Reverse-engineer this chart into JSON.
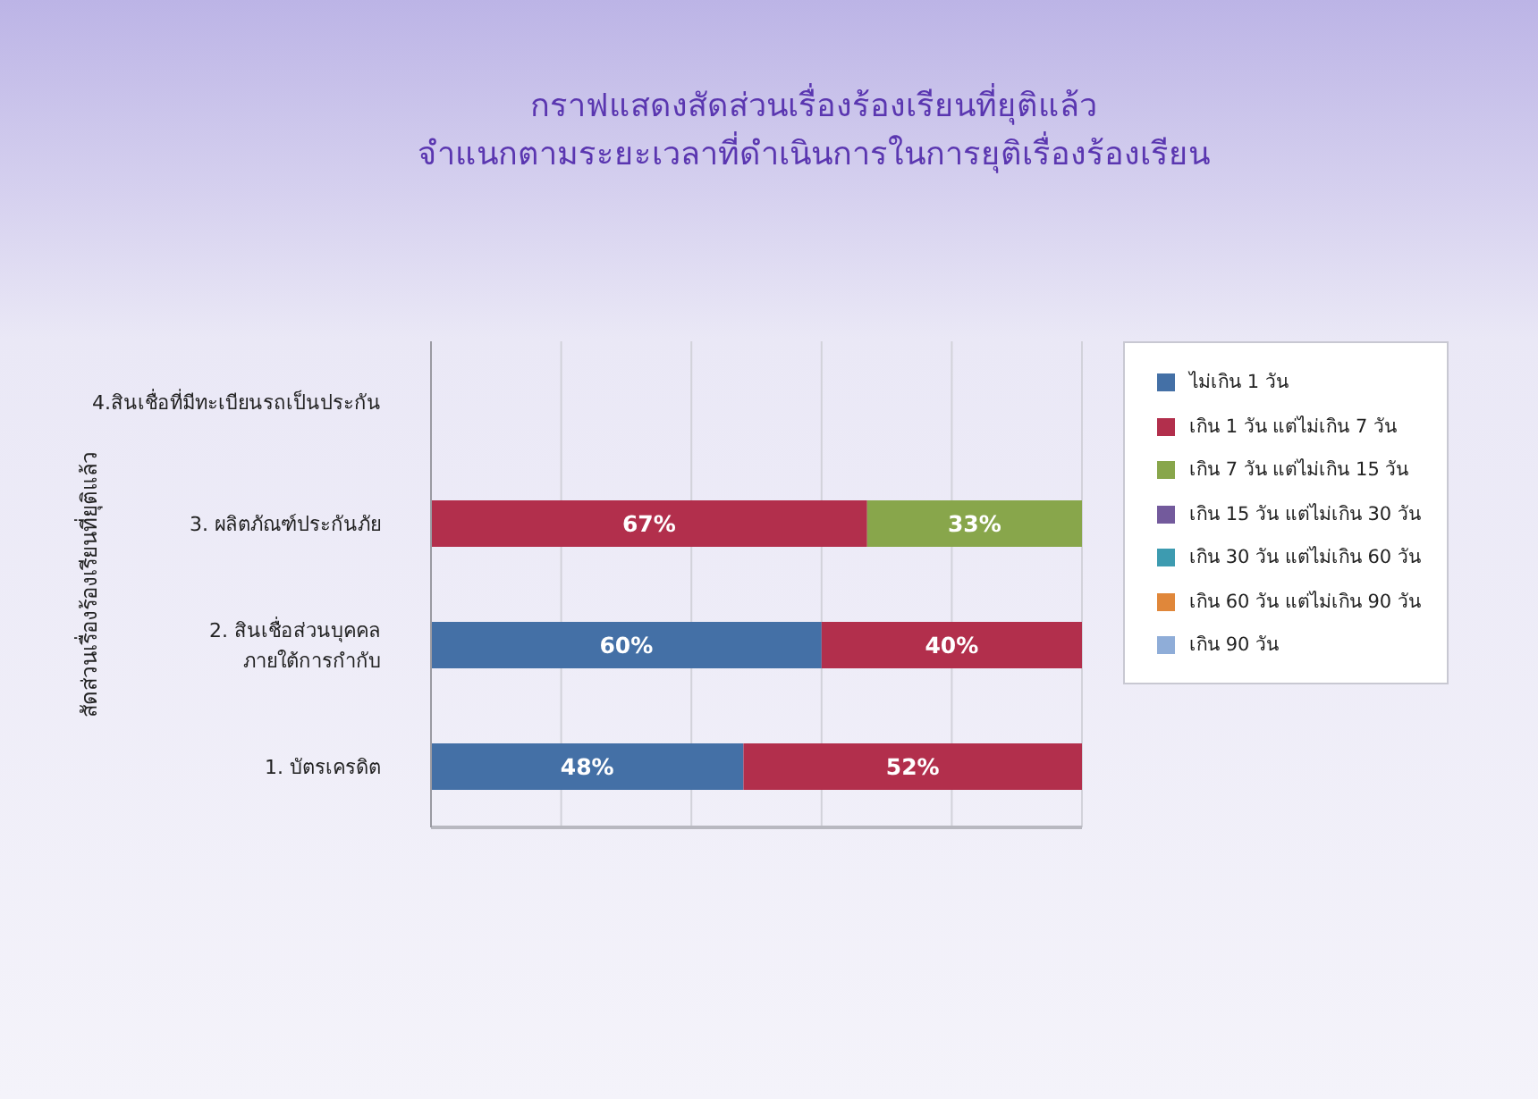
{
  "chart_data": {
    "type": "bar",
    "orientation": "horizontal",
    "stacked": true,
    "title": "กราฟแสดงสัดส่วนเรื่องร้องเรียนที่ยุติแล้ว",
    "subtitle": "จำแนกตามระยะเวลาที่ดำเนินการในการยุติเรื่องร้องเรียน",
    "ylabel": "สัดส่วนเรื่องร้องเรียนที่ยุติแล้ว",
    "categories": [
      "4.สินเชื่อที่มีทะเบียนรถเป็นประกัน",
      "3. ผลิตภัณฑ์ประกันภัย",
      "2. สินเชื่อส่วนบุคคล\nภายใต้การกำกับ",
      "1. บัตรเครดิต"
    ],
    "series": [
      {
        "name": "ไม่เกิน 1 วัน",
        "color": "#4470a6",
        "values": [
          null,
          null,
          60,
          48
        ],
        "value_labels": [
          null,
          null,
          "60%",
          "48%"
        ]
      },
      {
        "name": "เกิน 1 วัน แต่ไม่เกิน 7 วัน",
        "color": "#b22f4c",
        "values": [
          null,
          67,
          40,
          52
        ],
        "value_labels": [
          null,
          "67%",
          "40%",
          "52%"
        ]
      },
      {
        "name": "เกิน 7 วัน แต่ไม่เกิน 15 วัน",
        "color": "#88a64b",
        "values": [
          null,
          33,
          null,
          null
        ],
        "value_labels": [
          null,
          "33%",
          null,
          null
        ]
      },
      {
        "name": "เกิน 15 วัน แต่ไม่เกิน 30 วัน",
        "color": "#735a9c",
        "values": [
          null,
          null,
          null,
          null
        ]
      },
      {
        "name": "เกิน 30 วัน แต่ไม่เกิน 60 วัน",
        "color": "#3d9bb0",
        "values": [
          null,
          null,
          null,
          null
        ]
      },
      {
        "name": "เกิน 60 วัน แต่ไม่เกิน 90 วัน",
        "color": "#e0873a",
        "values": [
          null,
          null,
          null,
          null
        ]
      },
      {
        "name": "เกิน 90 วัน",
        "color": "#8fadd8",
        "values": [
          null,
          null,
          null,
          null
        ]
      }
    ],
    "xlim": [
      0,
      100
    ],
    "xticks": [
      {
        "value": 0,
        "label": null
      },
      {
        "value": 20,
        "label": null
      },
      {
        "value": 40,
        "label": null
      },
      {
        "value": 60,
        "label": null
      },
      {
        "value": 80,
        "label": null
      },
      {
        "value": 100,
        "label": null
      }
    ],
    "grid": "x",
    "legend": "right",
    "tick_labels": "y"
  }
}
